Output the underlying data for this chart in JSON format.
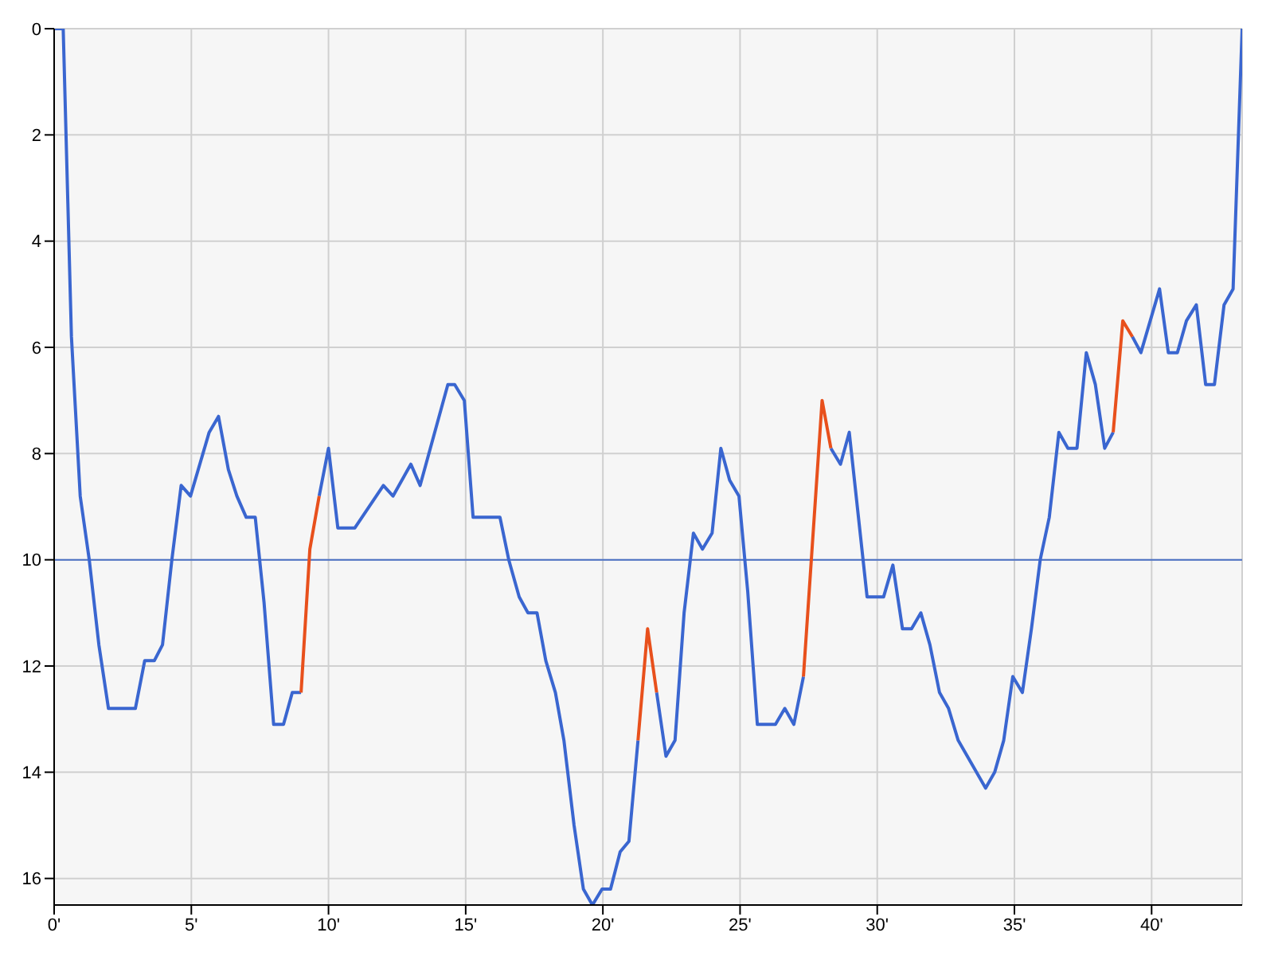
{
  "chart_data": {
    "type": "line",
    "xlim": [
      0,
      43.3
    ],
    "xticks": [
      {
        "value": 0,
        "label": "0'"
      },
      {
        "value": 5,
        "label": "5'"
      },
      {
        "value": 10,
        "label": "10'"
      },
      {
        "value": 15,
        "label": "15'"
      },
      {
        "value": 20,
        "label": "20'"
      },
      {
        "value": 25,
        "label": "25'"
      },
      {
        "value": 30,
        "label": "30'"
      },
      {
        "value": 35,
        "label": "35'"
      },
      {
        "value": 40,
        "label": "40'"
      }
    ],
    "ylim": [
      16.5,
      0
    ],
    "yticks": [
      0,
      2,
      4,
      6,
      8,
      10,
      12,
      14,
      16
    ],
    "grid": true,
    "ref_lines": [
      {
        "axis": "y",
        "value": 10,
        "color": "#4a6fc4"
      }
    ],
    "series": [
      {
        "color": "#3a66d0",
        "x": [
          0,
          0.33,
          0.63,
          0.95,
          1.28,
          1.63,
          1.98,
          2.96,
          3.3,
          3.65,
          3.95,
          4.29,
          4.63,
          4.97,
          5.65,
          5.99,
          6.35,
          6.66,
          7.0,
          7.33,
          7.65,
          8.0,
          8.36,
          8.68,
          9.0,
          9.32,
          9.66,
          10.0,
          10.34,
          10.96,
          12.0,
          12.35,
          13.0,
          13.34,
          14.35,
          14.6,
          14.95,
          15.27,
          16.25,
          16.57,
          16.95,
          17.27,
          17.6,
          17.92,
          18.27,
          18.58,
          18.95,
          19.29,
          19.62,
          19.97,
          20.28,
          20.63,
          20.95,
          21.28,
          21.63,
          21.96,
          22.3,
          22.63,
          22.96,
          23.3,
          23.63,
          23.98,
          24.3,
          24.62,
          24.96,
          25.28,
          25.63,
          26.29,
          26.63,
          26.96,
          27.31,
          27.99,
          28.31,
          28.66,
          28.98,
          29.63,
          30.23,
          30.57,
          30.92,
          31.25,
          31.59,
          31.92,
          32.27,
          32.6,
          32.95,
          33.95,
          34.28,
          34.61,
          34.94,
          35.29,
          35.62,
          35.94,
          36.27,
          36.62,
          36.95,
          37.28,
          37.62,
          37.95,
          38.29,
          38.6,
          38.95,
          39.3,
          39.61,
          40.29,
          40.61,
          40.94,
          41.27,
          41.63,
          41.97,
          42.29,
          42.64,
          42.97,
          43.3
        ],
        "values": [
          0,
          0,
          5.8,
          8.8,
          10.0,
          11.6,
          12.8,
          12.8,
          11.9,
          11.9,
          11.6,
          10.0,
          8.6,
          8.8,
          7.6,
          7.3,
          8.3,
          8.8,
          9.2,
          9.2,
          10.8,
          13.1,
          13.1,
          12.5,
          12.5,
          null,
          8.8,
          7.9,
          9.4,
          9.4,
          8.6,
          8.8,
          8.2,
          8.6,
          6.7,
          6.7,
          7.0,
          9.2,
          9.2,
          10.0,
          10.7,
          11.0,
          11.0,
          11.9,
          12.5,
          13.4,
          15.0,
          16.2,
          16.5,
          16.2,
          16.2,
          15.5,
          15.3,
          13.4,
          null,
          12.5,
          13.7,
          13.4,
          11.0,
          9.5,
          9.8,
          9.5,
          7.9,
          8.5,
          8.8,
          10.6,
          13.1,
          13.1,
          12.8,
          13.1,
          12.2,
          null,
          7.9,
          8.2,
          7.6,
          10.7,
          10.7,
          10.1,
          11.3,
          11.3,
          11.0,
          11.6,
          12.5,
          12.8,
          13.4,
          14.3,
          14.0,
          13.4,
          12.2,
          12.5,
          11.3,
          10.0,
          9.2,
          7.6,
          7.9,
          7.9,
          6.1,
          6.7,
          7.9,
          7.6,
          null,
          5.8,
          6.1,
          4.9,
          6.1,
          6.1,
          5.5,
          5.2,
          6.7,
          6.7,
          5.2,
          4.9,
          0
        ]
      },
      {
        "color": "#e8501c",
        "x": [
          9.0,
          9.32,
          9.66,
          null,
          21.28,
          21.63,
          21.96,
          null,
          27.31,
          27.99,
          28.31,
          null,
          38.6,
          38.95,
          39.3
        ],
        "values": [
          12.5,
          9.8,
          8.8,
          null,
          13.4,
          11.3,
          12.5,
          null,
          12.2,
          7.0,
          7.9,
          null,
          7.6,
          5.5,
          5.8
        ]
      }
    ]
  }
}
